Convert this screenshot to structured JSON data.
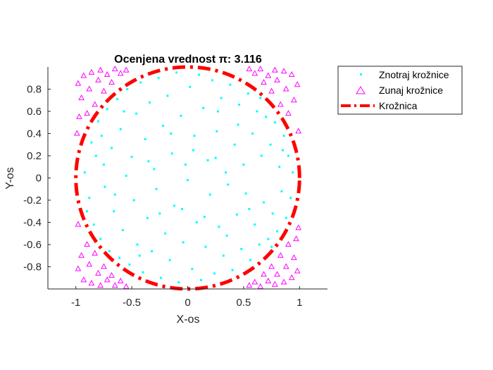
{
  "chart_data": {
    "type": "scatter",
    "title": "Ocenjena vrednost π: 3.116",
    "xlabel": "X-os",
    "ylabel": "Y-os",
    "xlim": [
      -1.25,
      1.25
    ],
    "ylim": [
      -1,
      1
    ],
    "xticks": [
      -1,
      -0.5,
      0,
      0.5,
      1
    ],
    "xtick_labels": [
      "-1",
      "-0.5",
      "0",
      "0.5",
      "1"
    ],
    "yticks": [
      -0.8,
      -0.6,
      -0.4,
      -0.2,
      0,
      0.2,
      0.4,
      0.6,
      0.8
    ],
    "ytick_labels": [
      "-0.8",
      "-0.6",
      "-0.4",
      "-0.2",
      "0",
      "0.2",
      "0.4",
      "0.6",
      "0.8"
    ],
    "grid": false,
    "legend_position": "outside-top-right",
    "series": [
      {
        "name": "Znotraj krožnice",
        "marker": "point",
        "color": "#00ffff",
        "points": [
          [
            -0.92,
            0.05
          ],
          [
            -0.88,
            -0.18
          ],
          [
            -0.86,
            0.32
          ],
          [
            -0.84,
            -0.42
          ],
          [
            -0.8,
            0.51
          ],
          [
            -0.78,
            -0.55
          ],
          [
            -0.75,
            0.12
          ],
          [
            -0.74,
            -0.08
          ],
          [
            -0.72,
            0.62
          ],
          [
            -0.7,
            -0.66
          ],
          [
            -0.68,
            0.27
          ],
          [
            -0.66,
            -0.3
          ],
          [
            -0.63,
            0.71
          ],
          [
            -0.61,
            -0.72
          ],
          [
            -0.6,
            0.44
          ],
          [
            -0.58,
            -0.47
          ],
          [
            -0.55,
            0.02
          ],
          [
            -0.54,
            0.8
          ],
          [
            -0.52,
            -0.78
          ],
          [
            -0.5,
            0.19
          ],
          [
            -0.48,
            -0.2
          ],
          [
            -0.46,
            0.58
          ],
          [
            -0.45,
            -0.6
          ],
          [
            -0.42,
            0.86
          ],
          [
            -0.4,
            -0.85
          ],
          [
            -0.38,
            0.35
          ],
          [
            -0.36,
            -0.36
          ],
          [
            -0.34,
            0.68
          ],
          [
            -0.32,
            -0.66
          ],
          [
            -0.3,
            0.08
          ],
          [
            -0.28,
            -0.1
          ],
          [
            -0.26,
            0.9
          ],
          [
            -0.24,
            -0.9
          ],
          [
            -0.22,
            0.47
          ],
          [
            -0.2,
            -0.5
          ],
          [
            -0.18,
            0.74
          ],
          [
            -0.16,
            -0.74
          ],
          [
            -0.14,
            0.22
          ],
          [
            -0.12,
            -0.25
          ],
          [
            -0.1,
            0.95
          ],
          [
            -0.08,
            -0.94
          ],
          [
            -0.06,
            0.56
          ],
          [
            -0.04,
            -0.58
          ],
          [
            -0.02,
            0.12
          ],
          [
            0.0,
            -0.02
          ],
          [
            0.02,
            0.82
          ],
          [
            0.04,
            -0.82
          ],
          [
            0.06,
            0.38
          ],
          [
            0.08,
            -0.4
          ],
          [
            0.1,
            0.93
          ],
          [
            0.12,
            -0.92
          ],
          [
            0.14,
            0.63
          ],
          [
            0.16,
            -0.62
          ],
          [
            0.18,
            0.16
          ],
          [
            0.2,
            -0.15
          ],
          [
            0.22,
            0.88
          ],
          [
            0.24,
            -0.86
          ],
          [
            0.26,
            0.42
          ],
          [
            0.28,
            -0.44
          ],
          [
            0.3,
            0.72
          ],
          [
            0.32,
            -0.7
          ],
          [
            0.34,
            0.05
          ],
          [
            0.36,
            -0.06
          ],
          [
            0.38,
            0.84
          ],
          [
            0.4,
            -0.83
          ],
          [
            0.42,
            0.3
          ],
          [
            0.44,
            -0.33
          ],
          [
            0.46,
            0.66
          ],
          [
            0.48,
            -0.64
          ],
          [
            0.5,
            0.12
          ],
          [
            0.52,
            -0.14
          ],
          [
            0.54,
            0.76
          ],
          [
            0.56,
            -0.74
          ],
          [
            0.58,
            0.4
          ],
          [
            0.6,
            -0.42
          ],
          [
            0.62,
            0.6
          ],
          [
            0.64,
            -0.6
          ],
          [
            0.66,
            0.2
          ],
          [
            0.68,
            -0.22
          ],
          [
            0.7,
            0.55
          ],
          [
            0.72,
            -0.55
          ],
          [
            0.74,
            0.3
          ],
          [
            0.76,
            -0.32
          ],
          [
            0.78,
            0.5
          ],
          [
            0.8,
            -0.48
          ],
          [
            0.82,
            0.1
          ],
          [
            0.84,
            -0.12
          ],
          [
            0.86,
            0.38
          ],
          [
            0.88,
            -0.36
          ],
          [
            0.9,
            0.2
          ],
          [
            0.92,
            -0.18
          ],
          [
            0.94,
            0.05
          ],
          [
            -0.9,
            -0.3
          ],
          [
            -0.82,
            0.2
          ],
          [
            -0.77,
            0.38
          ],
          [
            -0.65,
            -0.15
          ],
          [
            -0.57,
            0.6
          ],
          [
            -0.43,
            -0.7
          ],
          [
            -0.35,
            0.15
          ],
          [
            -0.25,
            -0.32
          ],
          [
            -0.15,
            0.4
          ],
          [
            -0.05,
            -0.28
          ],
          [
            0.05,
            0.25
          ],
          [
            0.15,
            -0.35
          ],
          [
            0.25,
            0.18
          ],
          [
            0.35,
            -0.52
          ],
          [
            0.45,
            0.48
          ],
          [
            0.55,
            -0.28
          ],
          [
            0.65,
            0.72
          ],
          [
            0.75,
            -0.62
          ],
          [
            0.85,
            0.25
          ],
          [
            0.27,
            0.6
          ]
        ]
      },
      {
        "name": "Zunaj krožnice",
        "marker": "triangle",
        "color": "#ff00ff",
        "points": [
          [
            -0.98,
            0.85
          ],
          [
            -0.95,
            0.72
          ],
          [
            -0.93,
            0.92
          ],
          [
            -0.9,
            0.58
          ],
          [
            -0.88,
            0.8
          ],
          [
            -0.86,
            0.95
          ],
          [
            -0.83,
            0.66
          ],
          [
            -0.8,
            0.88
          ],
          [
            -0.78,
            0.97
          ],
          [
            -0.75,
            0.78
          ],
          [
            -0.72,
            0.93
          ],
          [
            -0.68,
            0.86
          ],
          [
            -0.65,
            0.98
          ],
          [
            -0.6,
            0.94
          ],
          [
            -0.55,
            0.97
          ],
          [
            -0.98,
            -0.82
          ],
          [
            -0.95,
            -0.7
          ],
          [
            -0.93,
            -0.92
          ],
          [
            -0.9,
            -0.6
          ],
          [
            -0.88,
            -0.78
          ],
          [
            -0.86,
            -0.95
          ],
          [
            -0.83,
            -0.68
          ],
          [
            -0.8,
            -0.86
          ],
          [
            -0.78,
            -0.97
          ],
          [
            -0.75,
            -0.8
          ],
          [
            -0.72,
            -0.92
          ],
          [
            -0.68,
            -0.88
          ],
          [
            -0.65,
            -0.97
          ],
          [
            -0.6,
            -0.93
          ],
          [
            -0.55,
            -0.98
          ],
          [
            0.98,
            0.84
          ],
          [
            0.95,
            0.7
          ],
          [
            0.93,
            0.93
          ],
          [
            0.9,
            0.58
          ],
          [
            0.88,
            0.8
          ],
          [
            0.86,
            0.96
          ],
          [
            0.83,
            0.66
          ],
          [
            0.8,
            0.88
          ],
          [
            0.78,
            0.97
          ],
          [
            0.75,
            0.78
          ],
          [
            0.72,
            0.92
          ],
          [
            0.68,
            0.86
          ],
          [
            0.65,
            0.98
          ],
          [
            0.6,
            0.94
          ],
          [
            0.55,
            0.98
          ],
          [
            0.98,
            -0.84
          ],
          [
            0.95,
            -0.72
          ],
          [
            0.93,
            -0.9
          ],
          [
            0.9,
            -0.6
          ],
          [
            0.88,
            -0.8
          ],
          [
            0.86,
            -0.94
          ],
          [
            0.83,
            -0.7
          ],
          [
            0.8,
            -0.87
          ],
          [
            0.78,
            -0.96
          ],
          [
            0.75,
            -0.8
          ],
          [
            0.72,
            -0.93
          ],
          [
            0.68,
            -0.87
          ],
          [
            0.65,
            -0.98
          ],
          [
            0.6,
            -0.94
          ],
          [
            0.55,
            -0.97
          ],
          [
            -0.99,
            0.4
          ],
          [
            -0.98,
            -0.42
          ],
          [
            0.99,
            0.42
          ],
          [
            0.99,
            -0.45
          ],
          [
            -0.97,
            0.55
          ],
          [
            0.97,
            -0.55
          ]
        ]
      },
      {
        "name": "Krožnica",
        "marker": "dash-dot-line",
        "color": "#ff0000"
      }
    ]
  }
}
